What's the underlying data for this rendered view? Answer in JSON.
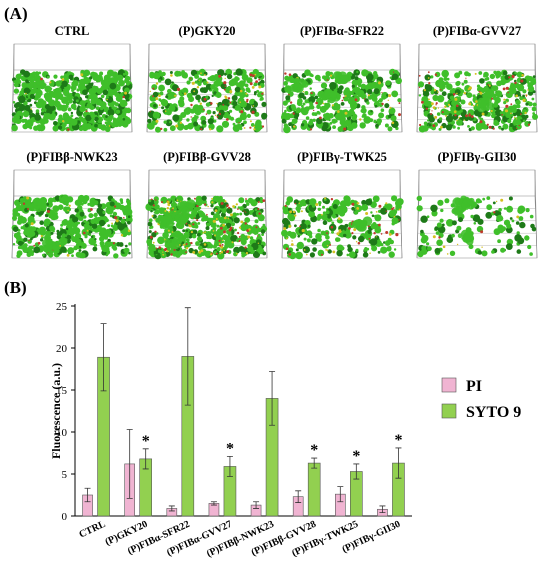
{
  "panels": {
    "a_label": "(A)",
    "b_label": "(B)"
  },
  "images": [
    {
      "title": "CTRL",
      "icon": "biofilm-image",
      "green_density": 1.0,
      "red_density": 0.05,
      "clusters": 0
    },
    {
      "title": "(P)GKY20",
      "icon": "biofilm-image",
      "green_density": 0.55,
      "red_density": 0.3,
      "clusters": 0
    },
    {
      "title": "(P)FIBα-SFR22",
      "icon": "biofilm-image",
      "green_density": 0.6,
      "red_density": 0.15,
      "clusters": 3
    },
    {
      "title": "(P)FIBα-GVV27",
      "icon": "biofilm-image",
      "green_density": 0.6,
      "red_density": 0.35,
      "clusters": 2
    },
    {
      "title": "(P)FIBβ-NWK23",
      "icon": "biofilm-image",
      "green_density": 0.8,
      "red_density": 0.1,
      "clusters": 2
    },
    {
      "title": "(P)FIBβ-GVV28",
      "icon": "biofilm-image",
      "green_density": 0.7,
      "red_density": 0.5,
      "clusters": 4
    },
    {
      "title": "(P)FIBγ-TWK25",
      "icon": "biofilm-image",
      "green_density": 0.45,
      "red_density": 0.25,
      "clusters": 1
    },
    {
      "title": "(P)FIBγ-GII30",
      "icon": "biofilm-image",
      "green_density": 0.22,
      "red_density": 0.05,
      "clusters": 4
    }
  ],
  "colors": {
    "pi": "#f0b4d2",
    "syto9": "#92d050",
    "bar_edge": "#555555",
    "biofilm_green": "#3fbf2a",
    "biofilm_dark": "#1e7a18",
    "biofilm_red": "#c0392b",
    "biofilm_yellow": "#d4c021"
  },
  "chart_data": {
    "type": "bar",
    "ylabel": "Fluorescence (a.u.)",
    "ylim": [
      0,
      25
    ],
    "yticks": [
      0,
      5,
      10,
      15,
      20,
      25
    ],
    "categories": [
      "CTRL",
      "(P)GKY20",
      "(P)FIBα-SFR22",
      "(P)FIBα-GVV27",
      "(P)FIBβ-NWK23",
      "(P)FIBβ-GVV28",
      "(P)FIBγ-TWK25",
      "(P)FIBγ-GII30"
    ],
    "series": [
      {
        "name": "PI",
        "values": [
          2.5,
          6.2,
          0.9,
          1.5,
          1.3,
          2.3,
          2.6,
          0.8
        ],
        "errors": [
          0.8,
          4.1,
          0.3,
          0.2,
          0.4,
          0.7,
          0.9,
          0.4
        ]
      },
      {
        "name": "SYTO 9",
        "values": [
          18.9,
          6.8,
          19.0,
          5.9,
          14.0,
          6.3,
          5.3,
          6.3
        ],
        "errors": [
          4.0,
          1.2,
          5.8,
          1.2,
          3.2,
          0.6,
          0.9,
          1.8
        ]
      }
    ],
    "significance": [
      "",
      "*",
      "",
      "*",
      "",
      "*",
      "*",
      "*"
    ],
    "legend_position": "right",
    "grid": false
  }
}
